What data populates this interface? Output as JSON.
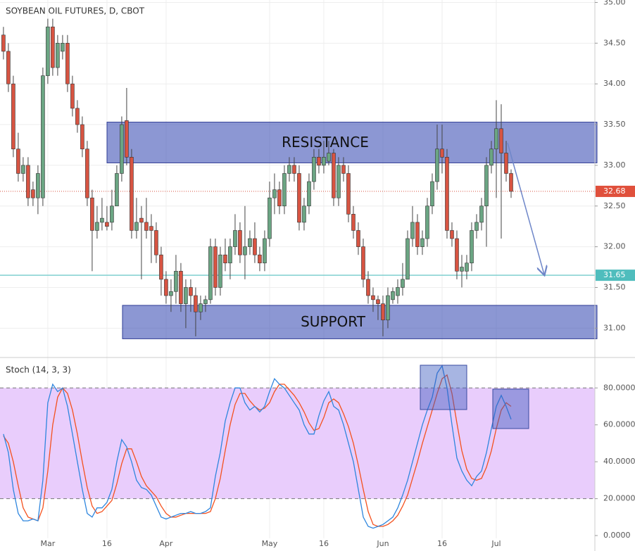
{
  "chart_data": [
    {
      "type": "candlestick",
      "title": "SOYBEAN OIL FUTURES, D, CBOT",
      "up_color": "#6ba583",
      "down_color": "#d75442",
      "ohlc": [
        [
          34.6,
          34.7,
          34.3,
          34.4
        ],
        [
          34.4,
          34.5,
          33.9,
          34.0
        ],
        [
          34.0,
          34.1,
          33.1,
          33.2
        ],
        [
          33.2,
          33.4,
          32.8,
          32.9
        ],
        [
          32.9,
          33.1,
          32.8,
          33.0
        ],
        [
          33.0,
          33.1,
          32.5,
          32.6
        ],
        [
          32.7,
          32.8,
          32.5,
          32.6
        ],
        [
          32.6,
          33.0,
          32.4,
          32.9
        ],
        [
          32.6,
          34.2,
          32.5,
          34.1
        ],
        [
          34.1,
          34.8,
          34.0,
          34.7
        ],
        [
          34.7,
          34.8,
          34.1,
          34.2
        ],
        [
          34.2,
          34.6,
          34.1,
          34.5
        ],
        [
          34.4,
          34.6,
          34.3,
          34.5
        ],
        [
          34.5,
          34.6,
          33.9,
          34.0
        ],
        [
          34.0,
          34.1,
          33.6,
          33.7
        ],
        [
          33.7,
          33.8,
          33.4,
          33.5
        ],
        [
          33.5,
          33.6,
          33.1,
          33.2
        ],
        [
          33.2,
          33.3,
          32.5,
          32.6
        ],
        [
          32.6,
          32.7,
          31.7,
          32.2
        ],
        [
          32.2,
          32.5,
          32.1,
          32.3
        ],
        [
          32.3,
          32.6,
          32.2,
          32.35
        ],
        [
          32.3,
          32.5,
          32.2,
          32.25
        ],
        [
          32.3,
          32.7,
          32.2,
          32.5
        ],
        [
          32.5,
          33.0,
          32.5,
          32.9
        ],
        [
          32.9,
          33.6,
          32.8,
          33.5
        ],
        [
          33.55,
          33.95,
          33.0,
          33.1
        ],
        [
          33.1,
          33.2,
          32.1,
          32.2
        ],
        [
          32.2,
          32.6,
          32.1,
          32.3
        ],
        [
          32.35,
          32.5,
          31.6,
          32.3
        ],
        [
          32.3,
          32.6,
          32.1,
          32.2
        ],
        [
          32.25,
          32.4,
          31.8,
          32.2
        ],
        [
          32.2,
          32.3,
          31.8,
          31.9
        ],
        [
          31.9,
          32.0,
          31.4,
          31.6
        ],
        [
          31.6,
          31.7,
          31.3,
          31.4
        ],
        [
          31.4,
          31.6,
          31.2,
          31.45
        ],
        [
          31.45,
          31.9,
          31.3,
          31.7
        ],
        [
          31.7,
          31.8,
          31.2,
          31.3
        ],
        [
          31.3,
          31.6,
          31.0,
          31.5
        ],
        [
          31.5,
          31.6,
          31.2,
          31.4
        ],
        [
          31.4,
          31.5,
          30.9,
          31.2
        ],
        [
          31.2,
          31.4,
          31.1,
          31.3
        ],
        [
          31.3,
          31.4,
          31.2,
          31.35
        ],
        [
          31.35,
          32.1,
          31.3,
          32.0
        ],
        [
          32.0,
          32.1,
          31.4,
          31.5
        ],
        [
          31.5,
          32.0,
          31.4,
          31.9
        ],
        [
          31.9,
          32.1,
          31.7,
          31.8
        ],
        [
          31.8,
          32.1,
          31.6,
          32.0
        ],
        [
          32.0,
          32.4,
          31.9,
          32.2
        ],
        [
          32.2,
          32.3,
          31.8,
          31.9
        ],
        [
          31.9,
          32.5,
          31.6,
          32.0
        ],
        [
          32.0,
          32.2,
          31.9,
          32.1
        ],
        [
          32.1,
          32.3,
          31.8,
          31.9
        ],
        [
          31.9,
          32.0,
          31.7,
          31.8
        ],
        [
          31.8,
          32.2,
          31.7,
          32.1
        ],
        [
          32.1,
          32.8,
          32.0,
          32.6
        ],
        [
          32.6,
          32.9,
          32.4,
          32.7
        ],
        [
          32.7,
          32.8,
          32.4,
          32.5
        ],
        [
          32.5,
          33.0,
          32.4,
          32.9
        ],
        [
          32.9,
          33.1,
          32.8,
          33.0
        ],
        [
          33.0,
          33.1,
          32.8,
          32.9
        ],
        [
          32.9,
          33.0,
          32.2,
          32.3
        ],
        [
          32.3,
          32.6,
          32.2,
          32.5
        ],
        [
          32.5,
          32.9,
          32.4,
          32.8
        ],
        [
          32.8,
          33.2,
          32.7,
          33.1
        ],
        [
          33.1,
          33.2,
          32.9,
          33.0
        ],
        [
          33.0,
          33.3,
          32.9,
          33.1
        ],
        [
          33.05,
          33.3,
          33.0,
          33.15
        ],
        [
          33.15,
          33.2,
          32.5,
          32.6
        ],
        [
          32.6,
          33.1,
          32.5,
          33.0
        ],
        [
          33.0,
          33.1,
          32.8,
          32.9
        ],
        [
          32.9,
          33.0,
          32.3,
          32.4
        ],
        [
          32.4,
          32.5,
          32.1,
          32.2
        ],
        [
          32.2,
          32.3,
          31.9,
          32.0
        ],
        [
          32.0,
          32.1,
          31.5,
          31.6
        ],
        [
          31.6,
          31.7,
          31.3,
          31.4
        ],
        [
          31.4,
          31.5,
          31.2,
          31.35
        ],
        [
          31.35,
          31.4,
          31.1,
          31.3
        ],
        [
          31.3,
          31.4,
          30.9,
          31.1
        ],
        [
          31.1,
          31.5,
          31.0,
          31.4
        ],
        [
          31.35,
          31.5,
          31.3,
          31.45
        ],
        [
          31.4,
          31.6,
          31.3,
          31.5
        ],
        [
          31.5,
          31.8,
          31.4,
          31.6
        ],
        [
          31.6,
          32.2,
          31.6,
          32.1
        ],
        [
          32.1,
          32.5,
          32.0,
          32.3
        ],
        [
          32.3,
          32.4,
          31.9,
          32.0
        ],
        [
          32.0,
          32.2,
          31.9,
          32.1
        ],
        [
          32.1,
          32.6,
          32.0,
          32.5
        ],
        [
          32.5,
          32.9,
          32.4,
          32.8
        ],
        [
          32.8,
          33.5,
          32.7,
          33.2
        ],
        [
          33.2,
          33.5,
          32.9,
          33.1
        ],
        [
          33.1,
          33.2,
          32.1,
          32.2
        ],
        [
          32.2,
          32.3,
          32.0,
          32.1
        ],
        [
          32.1,
          32.2,
          31.6,
          31.7
        ],
        [
          31.7,
          31.9,
          31.5,
          31.75
        ],
        [
          31.7,
          31.9,
          31.6,
          31.8
        ],
        [
          31.8,
          32.3,
          31.7,
          32.2
        ],
        [
          32.2,
          32.4,
          32.1,
          32.3
        ],
        [
          32.3,
          32.6,
          32.2,
          32.5
        ],
        [
          32.5,
          33.1,
          32.0,
          33.0
        ],
        [
          33.0,
          33.3,
          32.9,
          33.2
        ],
        [
          33.2,
          33.8,
          32.6,
          33.45
        ],
        [
          33.45,
          33.75,
          32.1,
          33.15
        ],
        [
          33.15,
          33.3,
          32.8,
          32.9
        ],
        [
          32.9,
          32.95,
          32.6,
          32.68
        ]
      ],
      "xlim": [
        -0.7,
        120
      ],
      "xticks": [
        {
          "value": 9,
          "label": "Mar"
        },
        {
          "value": 21,
          "label": "16"
        },
        {
          "value": 33,
          "label": "Apr"
        },
        {
          "value": 54,
          "label": "May"
        },
        {
          "value": 65,
          "label": "16"
        },
        {
          "value": 77,
          "label": "Jun"
        },
        {
          "value": 89,
          "label": "16"
        },
        {
          "value": 100,
          "label": "Jul"
        }
      ],
      "ylim": [
        30.64,
        35.03
      ],
      "yticks": [
        {
          "value": 31,
          "label": "31.00"
        },
        {
          "value": 31.5,
          "label": "31.50"
        },
        {
          "value": 32,
          "label": "32.00"
        },
        {
          "value": 32.5,
          "label": "32.50"
        },
        {
          "value": 33,
          "label": "33.00"
        },
        {
          "value": 33.5,
          "label": "33.50"
        },
        {
          "value": 34,
          "label": "34.00"
        },
        {
          "value": 34.5,
          "label": "34.50"
        },
        {
          "value": 35,
          "label": "35.00"
        }
      ],
      "zones": [
        {
          "label": "RESISTANCE",
          "range": [
            33.03,
            33.53
          ]
        },
        {
          "label": "SUPPORT",
          "range": [
            30.87,
            31.28
          ]
        }
      ],
      "last_price": 32.68,
      "level": 31.65
    },
    {
      "type": "line",
      "title": "Stoch (14, 3, 3)",
      "series": [
        {
          "color": "#2e86de",
          "values": [
            55,
            45,
            25,
            12,
            8,
            8,
            9,
            8,
            30,
            72,
            82,
            78,
            80,
            70,
            55,
            40,
            25,
            12,
            10,
            15,
            15,
            18,
            25,
            40,
            52,
            48,
            40,
            30,
            26,
            25,
            22,
            16,
            10,
            9,
            10,
            11,
            12,
            12,
            13,
            12,
            12,
            13,
            15,
            32,
            45,
            62,
            72,
            80,
            80,
            72,
            68,
            70,
            67,
            70,
            78,
            85,
            82,
            80,
            76,
            72,
            68,
            60,
            55,
            55,
            65,
            73,
            78,
            70,
            68,
            60,
            50,
            40,
            25,
            10,
            5,
            4,
            5,
            6,
            8,
            10,
            15,
            22,
            30,
            40,
            50,
            60,
            68,
            75,
            88,
            92,
            80,
            60,
            42,
            35,
            30,
            27,
            32,
            35,
            45,
            58,
            70,
            76,
            70,
            63
          ]
        },
        {
          "color": "#f4511e",
          "values": [
            54,
            50,
            40,
            27,
            15,
            10,
            9,
            8,
            15,
            35,
            60,
            75,
            80,
            77,
            68,
            55,
            40,
            26,
            16,
            12,
            13,
            16,
            19,
            28,
            39,
            47,
            47,
            40,
            32,
            27,
            24,
            21,
            16,
            12,
            10,
            10,
            11,
            12,
            12,
            12,
            12,
            12,
            13,
            20,
            31,
            46,
            60,
            71,
            77,
            77,
            73,
            70,
            68,
            69,
            72,
            78,
            82,
            82,
            79,
            76,
            72,
            67,
            61,
            57,
            58,
            64,
            72,
            74,
            72,
            66,
            59,
            50,
            38,
            25,
            13,
            6,
            5,
            5,
            6,
            8,
            11,
            16,
            22,
            31,
            40,
            50,
            59,
            68,
            77,
            85,
            87,
            77,
            61,
            46,
            36,
            31,
            30,
            31,
            37,
            46,
            58,
            68,
            72,
            70
          ]
        }
      ],
      "ylim": [
        -1.5,
        96.5
      ],
      "band": [
        20,
        80
      ],
      "yticks": [
        {
          "value": 0,
          "label": "0.0000"
        },
        {
          "value": 20,
          "label": "20.0000"
        },
        {
          "value": 40,
          "label": "40.0000"
        },
        {
          "value": 60,
          "label": "60.0000"
        },
        {
          "value": 80,
          "label": "80.0000"
        }
      ]
    }
  ]
}
